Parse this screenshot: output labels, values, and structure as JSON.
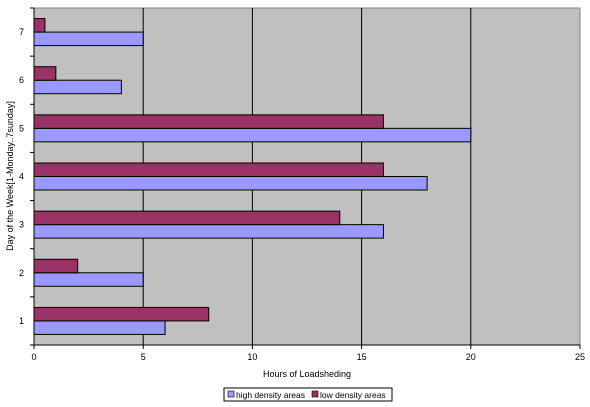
{
  "chart_data": {
    "type": "bar",
    "orientation": "horizontal",
    "categories": [
      "1",
      "2",
      "3",
      "4",
      "5",
      "6",
      "7"
    ],
    "series": [
      {
        "name": "high density areas",
        "values": [
          6,
          5,
          16,
          18,
          20,
          4,
          5
        ],
        "color": "#9999ff"
      },
      {
        "name": "low density areas",
        "values": [
          8,
          2,
          14,
          16,
          16,
          1,
          0.5
        ],
        "color": "#993366"
      }
    ],
    "xlabel": "Hours of Loadsheding",
    "ylabel": "Day of the Week[1-Monday..7sunday]",
    "xlim": [
      0,
      25
    ],
    "xticks": [
      "0",
      "5",
      "10",
      "15",
      "20",
      "25"
    ],
    "grid": true,
    "legend_position": "bottom",
    "plot_background": "#c0c0c0"
  }
}
